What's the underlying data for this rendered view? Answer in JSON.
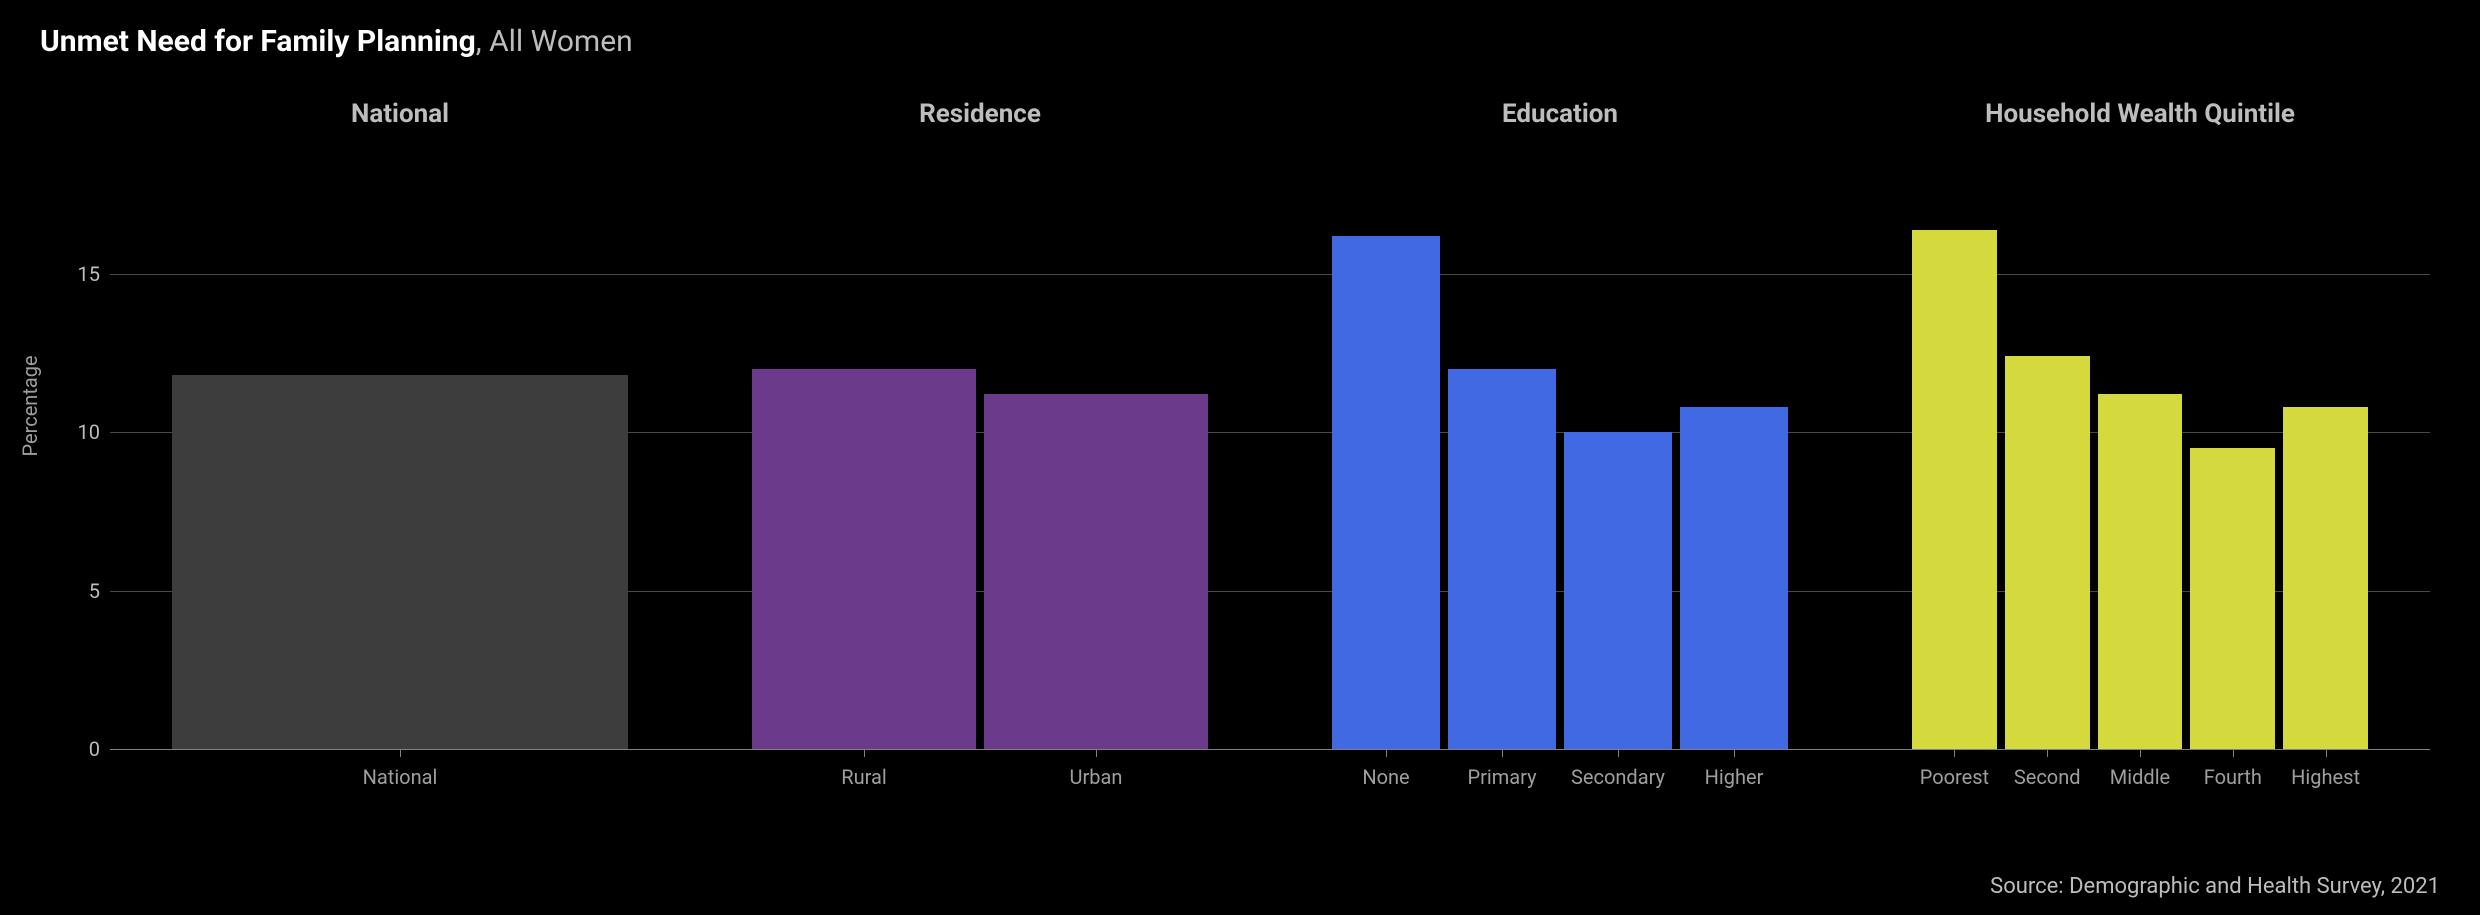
{
  "title_bold": "Unmet Need for Family Planning",
  "title_rest": ", All Women",
  "y_axis_label": "Percentage",
  "source": "Source: Demographic and Health Survey, 2021",
  "chart": {
    "type": "bar",
    "ylim_max": 18,
    "y_ticks": [
      0,
      5,
      10,
      15
    ],
    "background_color": "#000000",
    "grid_color": "#4a4a4a",
    "baseline_color": "#808080",
    "group_gap_pct": 2.5,
    "groups": [
      {
        "title": "National",
        "color": "#3d3d3d",
        "width_pct": 25,
        "bars": [
          {
            "label": "National",
            "value": 11.8
          }
        ]
      },
      {
        "title": "Residence",
        "color": "#6b3a8a",
        "width_pct": 25,
        "bars": [
          {
            "label": "Rural",
            "value": 12.0
          },
          {
            "label": "Urban",
            "value": 11.2
          }
        ]
      },
      {
        "title": "Education",
        "color": "#4169e1",
        "width_pct": 25,
        "bars": [
          {
            "label": "None",
            "value": 16.2
          },
          {
            "label": "Primary",
            "value": 12.0
          },
          {
            "label": "Secondary",
            "value": 10.0
          },
          {
            "label": "Higher",
            "value": 10.8
          }
        ]
      },
      {
        "title": "Household Wealth Quintile",
        "color": "#d4d93e",
        "width_pct": 25,
        "bars": [
          {
            "label": "Poorest",
            "value": 16.4
          },
          {
            "label": "Second",
            "value": 12.4
          },
          {
            "label": "Middle",
            "value": 11.2
          },
          {
            "label": "Fourth",
            "value": 9.5
          },
          {
            "label": "Highest",
            "value": 10.8
          }
        ]
      }
    ]
  }
}
